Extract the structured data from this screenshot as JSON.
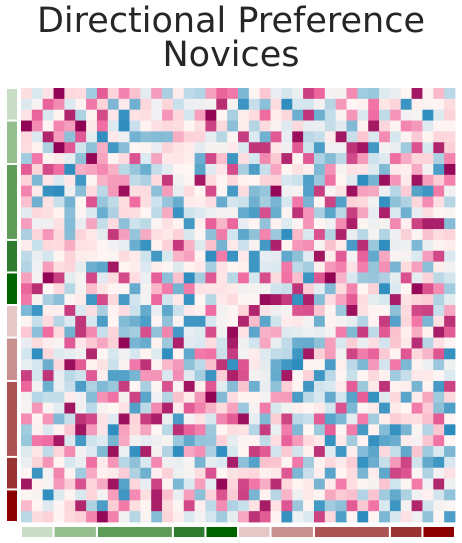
{
  "chart_data": {
    "type": "heatmap",
    "title_lines": [
      "Directional Preference",
      "Novices"
    ],
    "colormap": "diverging pink-white-blue",
    "color_scale": {
      "low": "#2b8cbe",
      "mid": "#fff5f3",
      "high": "#8e0152"
    },
    "grid": {
      "rows": 40,
      "cols": 40
    },
    "values": [],
    "group_bar_colors": [
      "#c8dcc6",
      "#95bf8f",
      "#5e9c58",
      "#2f7b30",
      "#006400",
      "#e5c7c7",
      "#c99090",
      "#ac5353",
      "#993232",
      "#8b0000"
    ],
    "group_sizes": [
      3,
      4,
      7,
      3,
      3,
      3,
      4,
      7,
      3,
      3
    ]
  }
}
